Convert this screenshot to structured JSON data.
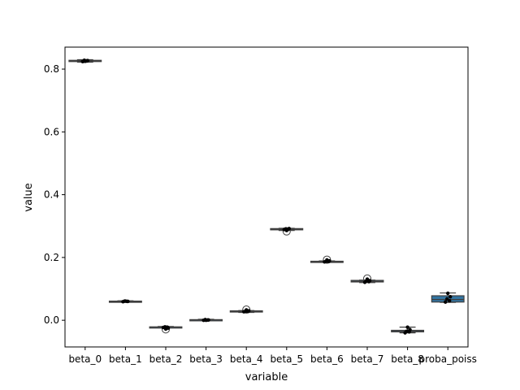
{
  "chart_data": {
    "type": "box",
    "xlabel": "variable",
    "ylabel": "value",
    "ylim": [
      -0.085,
      0.87
    ],
    "yticks": [
      0.0,
      0.2,
      0.4,
      0.6,
      0.8
    ],
    "ytick_labels": [
      "0.0",
      "0.2",
      "0.4",
      "0.6",
      "0.8"
    ],
    "grid": false,
    "box_color": "#3274a1",
    "categories": [
      "beta_0",
      "beta_1",
      "beta_2",
      "beta_3",
      "beta_4",
      "beta_5",
      "beta_6",
      "beta_7",
      "beta_8",
      "proba_poiss"
    ],
    "boxes": [
      {
        "q1": 0.824,
        "median": 0.826,
        "q3": 0.828,
        "whisker_low": 0.822,
        "whisker_high": 0.83,
        "outliers": [],
        "points": [
          0.824,
          0.826,
          0.828,
          0.827,
          0.825
        ]
      },
      {
        "q1": 0.059,
        "median": 0.06,
        "q3": 0.061,
        "whisker_low": 0.058,
        "whisker_high": 0.062,
        "outliers": [],
        "points": [
          0.059,
          0.06,
          0.061,
          0.06,
          0.061
        ]
      },
      {
        "q1": -0.023,
        "median": -0.022,
        "q3": -0.021,
        "whisker_low": -0.024,
        "whisker_high": -0.02,
        "outliers": [
          -0.029
        ],
        "points": [
          -0.023,
          -0.022,
          -0.021,
          -0.025,
          -0.028
        ]
      },
      {
        "q1": 0.0,
        "median": 0.001,
        "q3": 0.002,
        "whisker_low": -0.001,
        "whisker_high": 0.003,
        "outliers": [],
        "points": [
          0.0,
          0.001,
          0.002,
          0.001,
          0.0
        ]
      },
      {
        "q1": 0.027,
        "median": 0.028,
        "q3": 0.03,
        "whisker_low": 0.025,
        "whisker_high": 0.031,
        "outliers": [
          0.034
        ],
        "points": [
          0.027,
          0.028,
          0.029,
          0.03,
          0.033
        ]
      },
      {
        "q1": 0.288,
        "median": 0.29,
        "q3": 0.292,
        "whisker_low": 0.286,
        "whisker_high": 0.293,
        "outliers": [
          0.283
        ],
        "points": [
          0.289,
          0.29,
          0.291,
          0.292,
          0.286
        ]
      },
      {
        "q1": 0.186,
        "median": 0.187,
        "q3": 0.188,
        "whisker_low": 0.185,
        "whisker_high": 0.189,
        "outliers": [
          0.193
        ],
        "points": [
          0.186,
          0.187,
          0.188,
          0.189,
          0.192
        ]
      },
      {
        "q1": 0.122,
        "median": 0.124,
        "q3": 0.127,
        "whisker_low": 0.12,
        "whisker_high": 0.128,
        "outliers": [
          0.133
        ],
        "points": [
          0.121,
          0.123,
          0.125,
          0.126,
          0.131
        ]
      },
      {
        "q1": -0.037,
        "median": -0.035,
        "q3": -0.032,
        "whisker_low": -0.04,
        "whisker_high": -0.022,
        "outliers": [],
        "points": [
          -0.04,
          -0.037,
          -0.035,
          -0.03,
          -0.022
        ]
      },
      {
        "q1": 0.058,
        "median": 0.066,
        "q3": 0.078,
        "whisker_low": 0.057,
        "whisker_high": 0.087,
        "outliers": [],
        "points": [
          0.058,
          0.062,
          0.068,
          0.075,
          0.086
        ]
      }
    ]
  }
}
